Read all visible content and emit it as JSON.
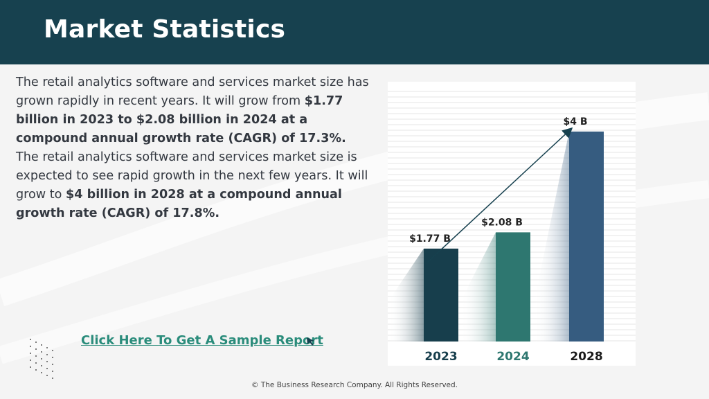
{
  "header": {
    "title": "Market Statistics"
  },
  "description": {
    "p1": "The retail analytics software and services market size has grown rapidly in recent years. It will grow from ",
    "b1": "$1.77 billion in 2023 to $2.08 billion in 2024 at a compound annual growth rate (CAGR) of 17.3%.",
    "p2": " The retail analytics software and services market size is expected to see rapid growth in the next few years. It will grow to ",
    "b2": "$4 billion in 2028 at a compound annual growth rate (CAGR) of 17.8%."
  },
  "cta": {
    "label": "Click Here To Get A Sample Report",
    "icon": "cursor-arrow-icon"
  },
  "footer": {
    "copyright": "© The Business Research Company. All Rights Reserved."
  },
  "colors": {
    "header": "#17414f",
    "bar_2023": "#173e4c",
    "bar_2024": "#2e7770",
    "bar_2028": "#365c80",
    "link": "#2a8c7b"
  },
  "chart_data": {
    "type": "bar",
    "categories": [
      "2023",
      "2024",
      "2028"
    ],
    "values": [
      1.77,
      2.08,
      4
    ],
    "data_labels": [
      "$1.77  B",
      "$2.08  B",
      "$4  B"
    ],
    "category_colors": [
      "#173e4c",
      "#2e7770",
      "#1a1a1a"
    ],
    "bar_colors": [
      "#173e4c",
      "#2e7770",
      "#365c80"
    ],
    "trend_arrow": true,
    "grid": true,
    "ylim": [
      0,
      4.5
    ],
    "title": "",
    "xlabel": "",
    "ylabel": ""
  }
}
